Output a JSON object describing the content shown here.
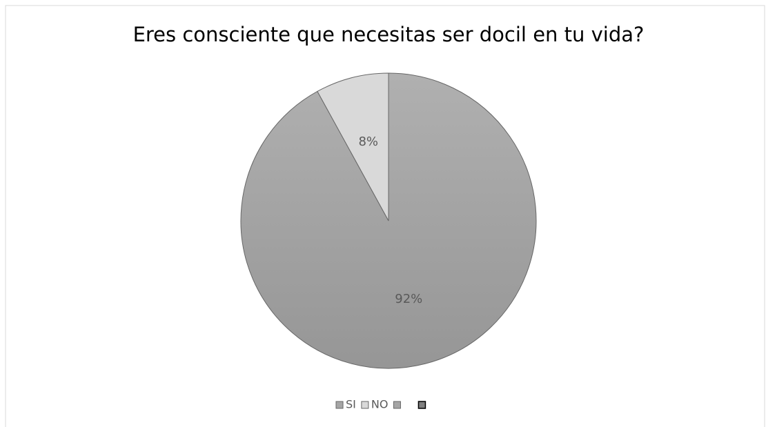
{
  "chart_data": {
    "type": "pie",
    "title": "Eres consciente que necesitas ser docil en tu vida?",
    "categories": [
      "SI",
      "NO",
      null,
      null
    ],
    "values": [
      92,
      8,
      0,
      0
    ],
    "value_labels": [
      "92%",
      "8%",
      null,
      null
    ],
    "colors": [
      "#a5a5a5",
      "#d9d9d9",
      "#a5a5a5",
      "#7f7f7f"
    ],
    "legend": "bottom"
  }
}
